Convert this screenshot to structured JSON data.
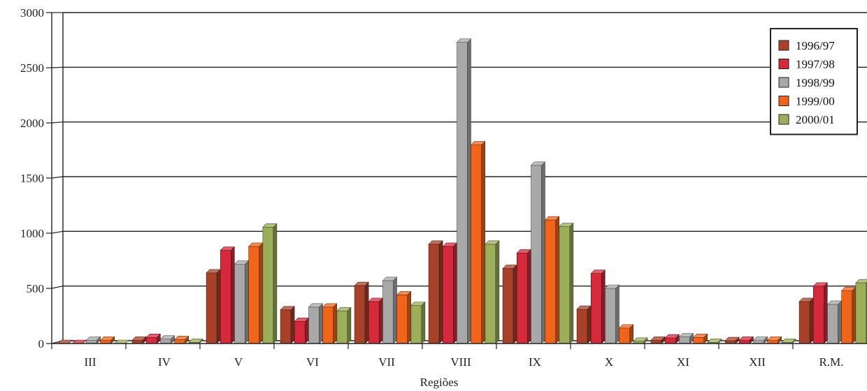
{
  "chart_data": {
    "type": "bar",
    "style": "3d-clustered-column",
    "title": "",
    "xlabel": "Regiões",
    "ylabel": "",
    "ylim": [
      0,
      3000
    ],
    "yticks": [
      0,
      500,
      1000,
      1500,
      2000,
      2500,
      3000
    ],
    "grid": true,
    "legend_position": "top-right",
    "categories": [
      "III",
      "IV",
      "V",
      "VI",
      "VII",
      "VIII",
      "IX",
      "X",
      "XI",
      "XII",
      "R.M."
    ],
    "series": [
      {
        "name": "1996/97",
        "color": "#a8412a",
        "values": [
          0,
          30,
          640,
          305,
          525,
          900,
          680,
          310,
          30,
          25,
          380
        ]
      },
      {
        "name": "1997/98",
        "color": "#d42a3c",
        "values": [
          0,
          55,
          845,
          200,
          380,
          880,
          820,
          635,
          50,
          30,
          520
        ]
      },
      {
        "name": "1998/99",
        "color": "#a8a8a8",
        "values": [
          30,
          40,
          720,
          330,
          570,
          2730,
          1615,
          500,
          60,
          30,
          355
        ]
      },
      {
        "name": "1999/00",
        "color": "#f0641c",
        "values": [
          30,
          35,
          880,
          330,
          440,
          1800,
          1120,
          140,
          55,
          30,
          480
        ]
      },
      {
        "name": "2000/01",
        "color": "#9cae5a",
        "values": [
          0,
          10,
          1055,
          295,
          345,
          900,
          1060,
          20,
          10,
          10,
          550
        ]
      }
    ]
  }
}
